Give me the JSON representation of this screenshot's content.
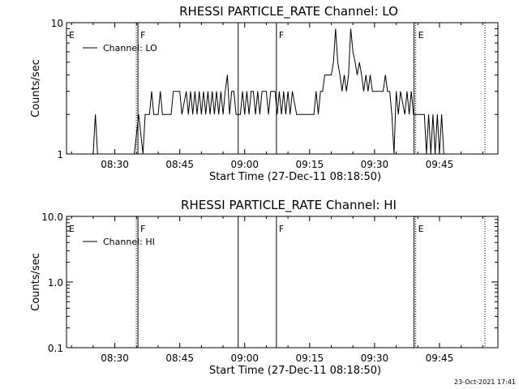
{
  "footer": {
    "timestamp": "23-Oct-2021 17:41"
  },
  "chart_data": [
    {
      "type": "line",
      "title": "RHESSI PARTICLE_RATE Channel: LO",
      "xlabel": "Start Time (27-Dec-11 08:18:50)",
      "ylabel": "Counts/sec",
      "x_ticks": [
        "08:30",
        "08:45",
        "09:00",
        "09:15",
        "09:30",
        "09:45"
      ],
      "y_ticks": [
        "1",
        "10"
      ],
      "ylim": [
        1,
        10
      ],
      "y_scale": "log",
      "xlim": [
        "08:18:50",
        "09:58:30"
      ],
      "legend": {
        "label": "Channel: LO",
        "placement": "top-left"
      },
      "grid": false,
      "markers": [
        {
          "time": "08:18:50",
          "label": "E",
          "style": "none"
        },
        {
          "time": "08:35:20",
          "label": "F",
          "style": "dotted-solid"
        },
        {
          "time": "08:58:30",
          "label": "",
          "style": "solid"
        },
        {
          "time": "09:07:20",
          "label": "F",
          "style": "solid"
        },
        {
          "time": "09:39:30",
          "label": "E",
          "style": "solid-dotted"
        },
        {
          "time": "09:55:30",
          "label": "",
          "style": "dotted"
        }
      ],
      "series": [
        {
          "name": "Channel: LO",
          "points": [
            [
              "08:25:00",
              1
            ],
            [
              "08:25:30",
              2
            ],
            [
              "08:26:00",
              1
            ],
            [
              "08:34:30",
              1
            ],
            [
              "08:35:30",
              2
            ],
            [
              "08:36:30",
              1
            ],
            [
              "08:37:00",
              2
            ],
            [
              "08:38:00",
              2
            ],
            [
              "08:38:30",
              3
            ],
            [
              "08:39:00",
              2
            ],
            [
              "08:40:00",
              2
            ],
            [
              "08:40:30",
              3
            ],
            [
              "08:41:00",
              2
            ],
            [
              "08:42:00",
              2
            ],
            [
              "08:43:00",
              2
            ],
            [
              "08:43:30",
              3
            ],
            [
              "08:44:00",
              3
            ],
            [
              "08:45:00",
              3
            ],
            [
              "08:45:30",
              2
            ],
            [
              "08:46:30",
              3
            ],
            [
              "08:47:00",
              2
            ],
            [
              "08:47:30",
              3
            ],
            [
              "08:48:00",
              2
            ],
            [
              "08:48:30",
              3
            ],
            [
              "08:49:00",
              2
            ],
            [
              "08:49:30",
              3
            ],
            [
              "08:50:00",
              2
            ],
            [
              "08:50:30",
              3
            ],
            [
              "08:51:00",
              2
            ],
            [
              "08:51:30",
              3
            ],
            [
              "08:52:00",
              2
            ],
            [
              "08:52:30",
              3
            ],
            [
              "08:53:00",
              2
            ],
            [
              "08:53:30",
              3
            ],
            [
              "08:54:00",
              2
            ],
            [
              "08:54:30",
              3
            ],
            [
              "08:55:00",
              2
            ],
            [
              "08:55:30",
              3
            ],
            [
              "08:56:00",
              4
            ],
            [
              "08:56:30",
              2
            ],
            [
              "08:57:00",
              3
            ],
            [
              "08:57:30",
              3
            ],
            [
              "08:58:00",
              2
            ],
            [
              "08:59:00",
              2
            ],
            [
              "08:59:30",
              3
            ],
            [
              "09:00:00",
              2
            ],
            [
              "09:00:30",
              3
            ],
            [
              "09:01:00",
              2
            ],
            [
              "09:01:30",
              3
            ],
            [
              "09:02:00",
              3
            ],
            [
              "09:02:30",
              2
            ],
            [
              "09:03:00",
              3
            ],
            [
              "09:03:30",
              2
            ],
            [
              "09:04:00",
              3
            ],
            [
              "09:05:00",
              3
            ],
            [
              "09:05:30",
              2
            ],
            [
              "09:06:00",
              3
            ],
            [
              "09:07:00",
              3
            ],
            [
              "09:07:30",
              2
            ],
            [
              "09:08:00",
              3
            ],
            [
              "09:08:30",
              2
            ],
            [
              "09:09:00",
              3
            ],
            [
              "09:09:30",
              2
            ],
            [
              "09:10:00",
              3
            ],
            [
              "09:10:30",
              2
            ],
            [
              "09:11:00",
              3
            ],
            [
              "09:12:00",
              2
            ],
            [
              "09:13:00",
              2
            ],
            [
              "09:14:00",
              2
            ],
            [
              "09:15:00",
              2
            ],
            [
              "09:16:00",
              2
            ],
            [
              "09:16:30",
              3
            ],
            [
              "09:17:00",
              2
            ],
            [
              "09:17:30",
              3
            ],
            [
              "09:18:00",
              3
            ],
            [
              "09:18:30",
              4
            ],
            [
              "09:19:00",
              4
            ],
            [
              "09:20:00",
              4
            ],
            [
              "09:20:30",
              5
            ],
            [
              "09:21:00",
              9
            ],
            [
              "09:21:30",
              5
            ],
            [
              "09:22:00",
              4
            ],
            [
              "09:22:30",
              3
            ],
            [
              "09:23:00",
              4
            ],
            [
              "09:23:30",
              3
            ],
            [
              "09:24:00",
              4
            ],
            [
              "09:24:30",
              9
            ],
            [
              "09:25:00",
              6
            ],
            [
              "09:25:30",
              5
            ],
            [
              "09:26:00",
              4
            ],
            [
              "09:26:30",
              5
            ],
            [
              "09:27:00",
              4
            ],
            [
              "09:27:30",
              3
            ],
            [
              "09:28:00",
              4
            ],
            [
              "09:28:30",
              3
            ],
            [
              "09:29:00",
              4
            ],
            [
              "09:29:30",
              3
            ],
            [
              "09:30:00",
              3
            ],
            [
              "09:31:00",
              3
            ],
            [
              "09:31:30",
              3
            ],
            [
              "09:32:00",
              3
            ],
            [
              "09:32:30",
              4
            ],
            [
              "09:33:00",
              3
            ],
            [
              "09:33:30",
              3
            ],
            [
              "09:34:00",
              2
            ],
            [
              "09:34:30",
              1
            ],
            [
              "09:35:00",
              3
            ],
            [
              "09:35:30",
              2
            ],
            [
              "09:36:00",
              3
            ],
            [
              "09:37:00",
              2
            ],
            [
              "09:37:30",
              3
            ],
            [
              "09:38:00",
              2
            ],
            [
              "09:38:30",
              3
            ],
            [
              "09:39:00",
              2
            ],
            [
              "09:40:00",
              2
            ],
            [
              "09:40:30",
              2
            ],
            [
              "09:41:00",
              2
            ],
            [
              "09:41:30",
              2
            ],
            [
              "09:42:00",
              1
            ],
            [
              "09:42:30",
              2
            ],
            [
              "09:43:00",
              1
            ],
            [
              "09:43:30",
              2
            ],
            [
              "09:44:00",
              1
            ],
            [
              "09:44:30",
              2
            ],
            [
              "09:45:00",
              1
            ],
            [
              "09:45:30",
              2
            ],
            [
              "09:46:00",
              1
            ]
          ]
        }
      ]
    },
    {
      "type": "line",
      "title": "RHESSI PARTICLE_RATE Channel: HI",
      "xlabel": "Start Time (27-Dec-11 08:18:50)",
      "ylabel": "Counts/sec",
      "x_ticks": [
        "08:30",
        "08:45",
        "09:00",
        "09:15",
        "09:30",
        "09:45"
      ],
      "y_ticks": [
        "0.1",
        "1.0",
        "10.0"
      ],
      "ylim": [
        0.1,
        10
      ],
      "y_scale": "log",
      "xlim": [
        "08:18:50",
        "09:58:30"
      ],
      "legend": {
        "label": "Channel: HI",
        "placement": "top-left"
      },
      "grid": false,
      "markers": [
        {
          "time": "08:18:50",
          "label": "E",
          "style": "none"
        },
        {
          "time": "08:35:20",
          "label": "F",
          "style": "dotted-solid"
        },
        {
          "time": "08:58:30",
          "label": "",
          "style": "solid"
        },
        {
          "time": "09:07:20",
          "label": "F",
          "style": "solid"
        },
        {
          "time": "09:39:30",
          "label": "E",
          "style": "solid-dotted"
        },
        {
          "time": "09:55:30",
          "label": "",
          "style": "dotted"
        }
      ],
      "series": [
        {
          "name": "Channel: HI",
          "points": []
        }
      ]
    }
  ]
}
